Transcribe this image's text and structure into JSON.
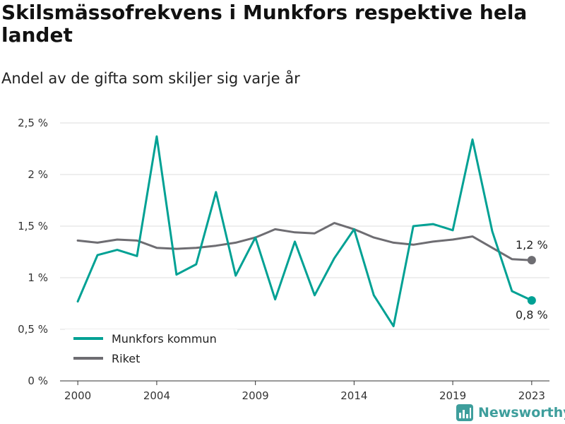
{
  "header": {
    "title": "Skilsmässofrekvens i Munkfors respektive hela landet",
    "subtitle": "Andel av de gifta som skiljer sig varje år"
  },
  "brand": {
    "name": "Newsworthy",
    "icon": "bar-chart-icon",
    "color": "#3e9e9c"
  },
  "chart_data": {
    "type": "line",
    "x": [
      2000,
      2001,
      2002,
      2003,
      2004,
      2005,
      2006,
      2007,
      2008,
      2009,
      2010,
      2011,
      2012,
      2013,
      2014,
      2015,
      2016,
      2017,
      2018,
      2019,
      2020,
      2021,
      2022,
      2023
    ],
    "xticks": [
      2000,
      2004,
      2009,
      2014,
      2019,
      2023
    ],
    "xlim": [
      1999.1,
      2023.9
    ],
    "ylim": [
      0,
      2.5
    ],
    "yticks": [
      {
        "value": 0,
        "label": "0 %"
      },
      {
        "value": 0.5,
        "label": "0,5 %"
      },
      {
        "value": 1,
        "label": "1 %"
      },
      {
        "value": 1.5,
        "label": "1,5 %"
      },
      {
        "value": 2,
        "label": "2 %"
      },
      {
        "value": 2.5,
        "label": "2,5 %"
      }
    ],
    "grid": true,
    "legend_position": "bottom-left",
    "series": [
      {
        "name": "Munkfors kommun",
        "color": "#00a194",
        "values": [
          0.77,
          1.22,
          1.27,
          1.21,
          2.37,
          1.03,
          1.13,
          1.83,
          1.02,
          1.39,
          0.79,
          1.35,
          0.83,
          1.19,
          1.47,
          0.83,
          0.53,
          1.5,
          1.52,
          1.46,
          2.34,
          1.45,
          0.87,
          0.78
        ],
        "end_label": "0,8 %"
      },
      {
        "name": "Riket",
        "color": "#6e6d72",
        "values": [
          1.36,
          1.34,
          1.37,
          1.36,
          1.29,
          1.28,
          1.29,
          1.31,
          1.34,
          1.39,
          1.47,
          1.44,
          1.43,
          1.53,
          1.47,
          1.39,
          1.34,
          1.32,
          1.35,
          1.37,
          1.4,
          1.29,
          1.18,
          1.17
        ],
        "end_label": "1,2 %"
      }
    ]
  }
}
